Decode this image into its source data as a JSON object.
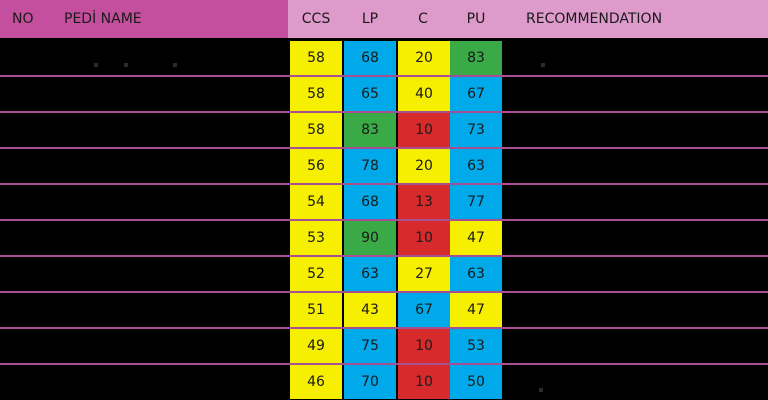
{
  "headers": {
    "no": "NO",
    "name": "PEDİ NAME",
    "ccs": "CCS",
    "lp": "LP",
    "c": "C",
    "pu": "PU",
    "recommendation": "RECOMMENDATION"
  },
  "colors": {
    "header_left": "#c44f9f",
    "header_right": "#dd9acb",
    "separator": "#a64f92",
    "yellow": "#f6ef00",
    "blue": "#00a9e9",
    "green": "#3aaa47",
    "red": "#d62a2c"
  },
  "rows": [
    {
      "ccs": {
        "value": "58",
        "color": "yellow"
      },
      "lp": {
        "value": "68",
        "color": "blue"
      },
      "c": {
        "value": "20",
        "color": "yellow"
      },
      "pu": {
        "value": "83",
        "color": "green"
      }
    },
    {
      "ccs": {
        "value": "58",
        "color": "yellow"
      },
      "lp": {
        "value": "65",
        "color": "blue"
      },
      "c": {
        "value": "40",
        "color": "yellow"
      },
      "pu": {
        "value": "67",
        "color": "blue"
      }
    },
    {
      "ccs": {
        "value": "58",
        "color": "yellow"
      },
      "lp": {
        "value": "83",
        "color": "green"
      },
      "c": {
        "value": "10",
        "color": "red"
      },
      "pu": {
        "value": "73",
        "color": "blue"
      }
    },
    {
      "ccs": {
        "value": "56",
        "color": "yellow"
      },
      "lp": {
        "value": "78",
        "color": "blue"
      },
      "c": {
        "value": "20",
        "color": "yellow"
      },
      "pu": {
        "value": "63",
        "color": "blue"
      }
    },
    {
      "ccs": {
        "value": "54",
        "color": "yellow"
      },
      "lp": {
        "value": "68",
        "color": "blue"
      },
      "c": {
        "value": "13",
        "color": "red"
      },
      "pu": {
        "value": "77",
        "color": "blue"
      }
    },
    {
      "ccs": {
        "value": "53",
        "color": "yellow"
      },
      "lp": {
        "value": "90",
        "color": "green"
      },
      "c": {
        "value": "10",
        "color": "red"
      },
      "pu": {
        "value": "47",
        "color": "yellow"
      }
    },
    {
      "ccs": {
        "value": "52",
        "color": "yellow"
      },
      "lp": {
        "value": "63",
        "color": "blue"
      },
      "c": {
        "value": "27",
        "color": "yellow"
      },
      "pu": {
        "value": "63",
        "color": "blue"
      }
    },
    {
      "ccs": {
        "value": "51",
        "color": "yellow"
      },
      "lp": {
        "value": "43",
        "color": "yellow"
      },
      "c": {
        "value": "67",
        "color": "blue"
      },
      "pu": {
        "value": "47",
        "color": "yellow"
      }
    },
    {
      "ccs": {
        "value": "49",
        "color": "yellow"
      },
      "lp": {
        "value": "75",
        "color": "blue"
      },
      "c": {
        "value": "10",
        "color": "red"
      },
      "pu": {
        "value": "53",
        "color": "blue"
      }
    },
    {
      "ccs": {
        "value": "46",
        "color": "yellow"
      },
      "lp": {
        "value": "70",
        "color": "blue"
      },
      "c": {
        "value": "10",
        "color": "red"
      },
      "pu": {
        "value": "50",
        "color": "blue"
      }
    }
  ]
}
